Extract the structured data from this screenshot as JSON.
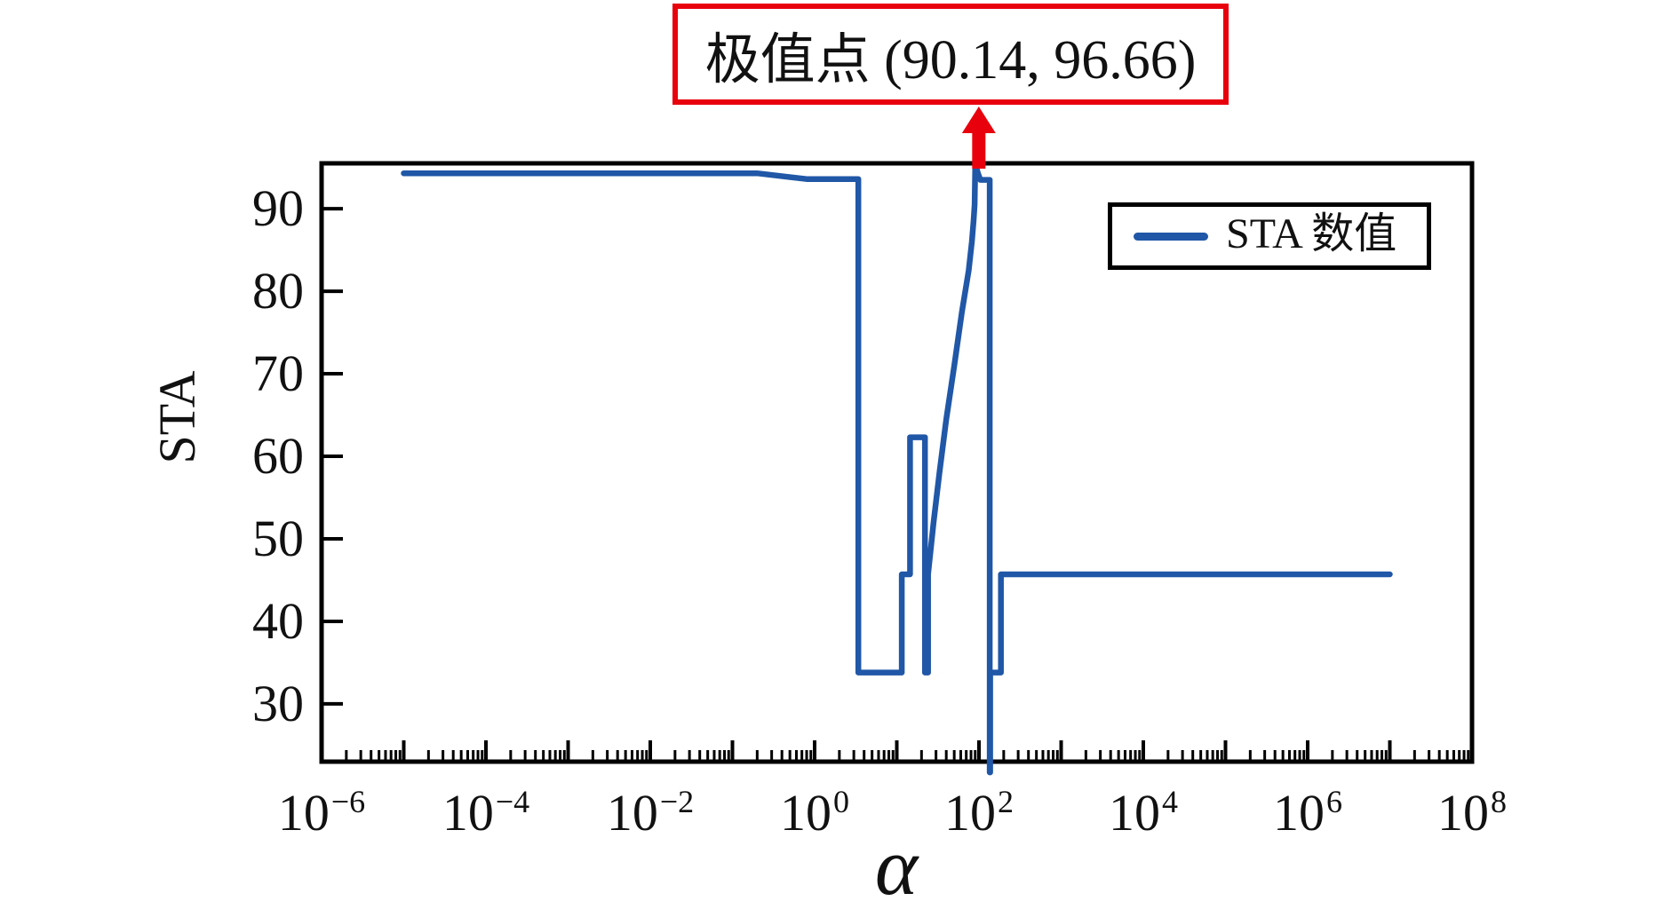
{
  "colors": {
    "line_blue": "#2057A7",
    "annotation_red": "#E8000D",
    "axis_black": "#000000",
    "background": "#FFFFFF"
  },
  "chart_data": {
    "type": "line",
    "title": "",
    "xlabel": "α",
    "ylabel": "STA",
    "x_scale": "log",
    "grid": false,
    "xlim_exponents": [
      -6,
      8
    ],
    "ylim": [
      23.0,
      95.5
    ],
    "x_major_tick_exponents": [
      -6,
      -5,
      -4,
      -3,
      -2,
      -1,
      0,
      1,
      2,
      3,
      4,
      5,
      6,
      7,
      8
    ],
    "x_tick_label_exponents": [
      -6,
      -4,
      -2,
      0,
      2,
      4,
      6,
      8
    ],
    "x_tick_label_base": "10",
    "y_ticks": [
      30,
      40,
      50,
      60,
      70,
      80,
      90
    ],
    "legend_position": "upper right",
    "legend_entries": [
      {
        "label": "STA 数值",
        "color": "#2057A7"
      }
    ],
    "annotation": {
      "text": "极值点 (90.14, 96.66)",
      "x": 90.14,
      "y": 96.66
    },
    "series": [
      {
        "name": "STA 数值",
        "color": "#2057A7",
        "points": [
          [
            1e-05,
            94.3
          ],
          [
            0.2,
            94.3
          ],
          [
            0.8,
            93.6
          ],
          [
            3.4,
            93.6
          ],
          [
            3.4,
            33.8
          ],
          [
            11.5,
            33.8
          ],
          [
            11.5,
            45.7
          ],
          [
            14.5,
            45.7
          ],
          [
            14.5,
            62.3
          ],
          [
            22,
            62.3
          ],
          [
            22,
            33.8
          ],
          [
            24,
            33.8
          ],
          [
            24,
            45.7
          ],
          [
            28,
            52
          ],
          [
            33,
            58
          ],
          [
            40,
            64.5
          ],
          [
            50,
            71
          ],
          [
            62,
            77.5
          ],
          [
            75,
            82.5
          ],
          [
            82,
            86
          ],
          [
            86,
            88.5
          ],
          [
            88.5,
            90.5
          ],
          [
            90.14,
            96.66
          ],
          [
            92,
            96.66
          ],
          [
            97,
            94.3
          ],
          [
            104,
            93.5
          ],
          [
            135,
            93.5
          ],
          [
            135,
            21.7
          ],
          [
            137,
            21.7
          ],
          [
            137,
            33.8
          ],
          [
            185,
            33.8
          ],
          [
            185,
            45.7
          ],
          [
            10000000.0,
            45.7
          ]
        ]
      }
    ]
  }
}
